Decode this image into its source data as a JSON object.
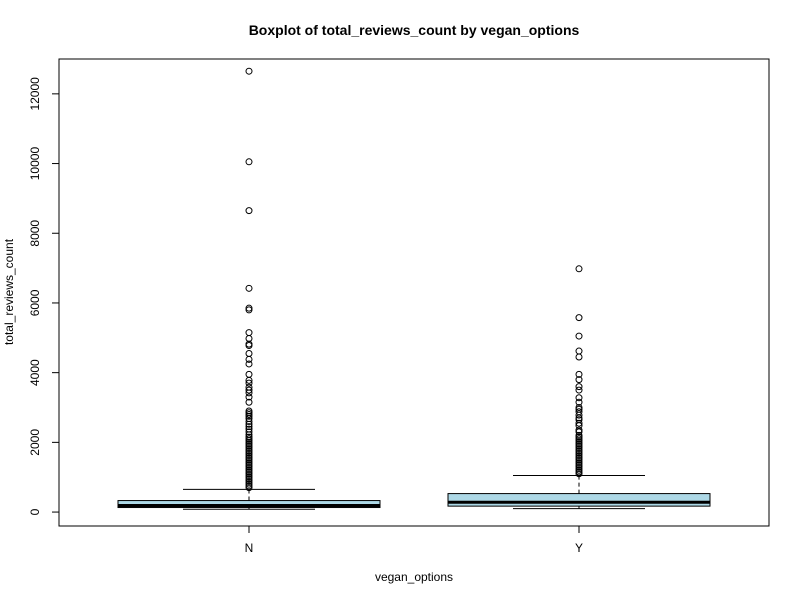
{
  "chart_data": {
    "type": "boxplot",
    "title": "Boxplot of total_reviews_count by vegan_options",
    "xlabel": "vegan_options",
    "ylabel": "total_reviews_count",
    "ylim": [
      -400,
      13000
    ],
    "y_ticks": [
      0,
      2000,
      4000,
      6000,
      8000,
      10000,
      12000
    ],
    "grid": false,
    "legend": "none",
    "box_color": "#add8e6",
    "categories": [
      "N",
      "Y"
    ],
    "boxes": [
      {
        "category": "N",
        "min": 80,
        "q1": 130,
        "median": 190,
        "q3": 330,
        "max": 650,
        "outliers": [
          12650,
          10050,
          8650,
          6420,
          5850,
          5800,
          5150,
          4980,
          4820,
          4780,
          4550,
          4380,
          4250,
          3950,
          3780,
          3700,
          3580,
          3500,
          3420,
          3300,
          3150,
          2900,
          2850,
          2800,
          2750,
          2680,
          2600,
          2520,
          2450,
          2380,
          2300,
          2220,
          2150,
          2100,
          2050,
          2000,
          1950,
          1900,
          1850,
          1800,
          1750,
          1700,
          1650,
          1600,
          1550,
          1500,
          1450,
          1400,
          1350,
          1300,
          1250,
          1200,
          1150,
          1100,
          1050,
          1000,
          950,
          900,
          850,
          800,
          750,
          700
        ]
      },
      {
        "category": "Y",
        "min": 100,
        "q1": 170,
        "median": 280,
        "q3": 530,
        "max": 1050,
        "outliers": [
          6980,
          5580,
          5050,
          4620,
          4450,
          3950,
          3800,
          3600,
          3500,
          3280,
          3150,
          3000,
          2950,
          2880,
          2780,
          2700,
          2650,
          2550,
          2480,
          2350,
          2300,
          2200,
          2150,
          2100,
          2050,
          2000,
          1950,
          1900,
          1850,
          1800,
          1750,
          1700,
          1650,
          1600,
          1550,
          1500,
          1450,
          1400,
          1350,
          1300,
          1250,
          1200,
          1150,
          1100
        ]
      }
    ]
  }
}
